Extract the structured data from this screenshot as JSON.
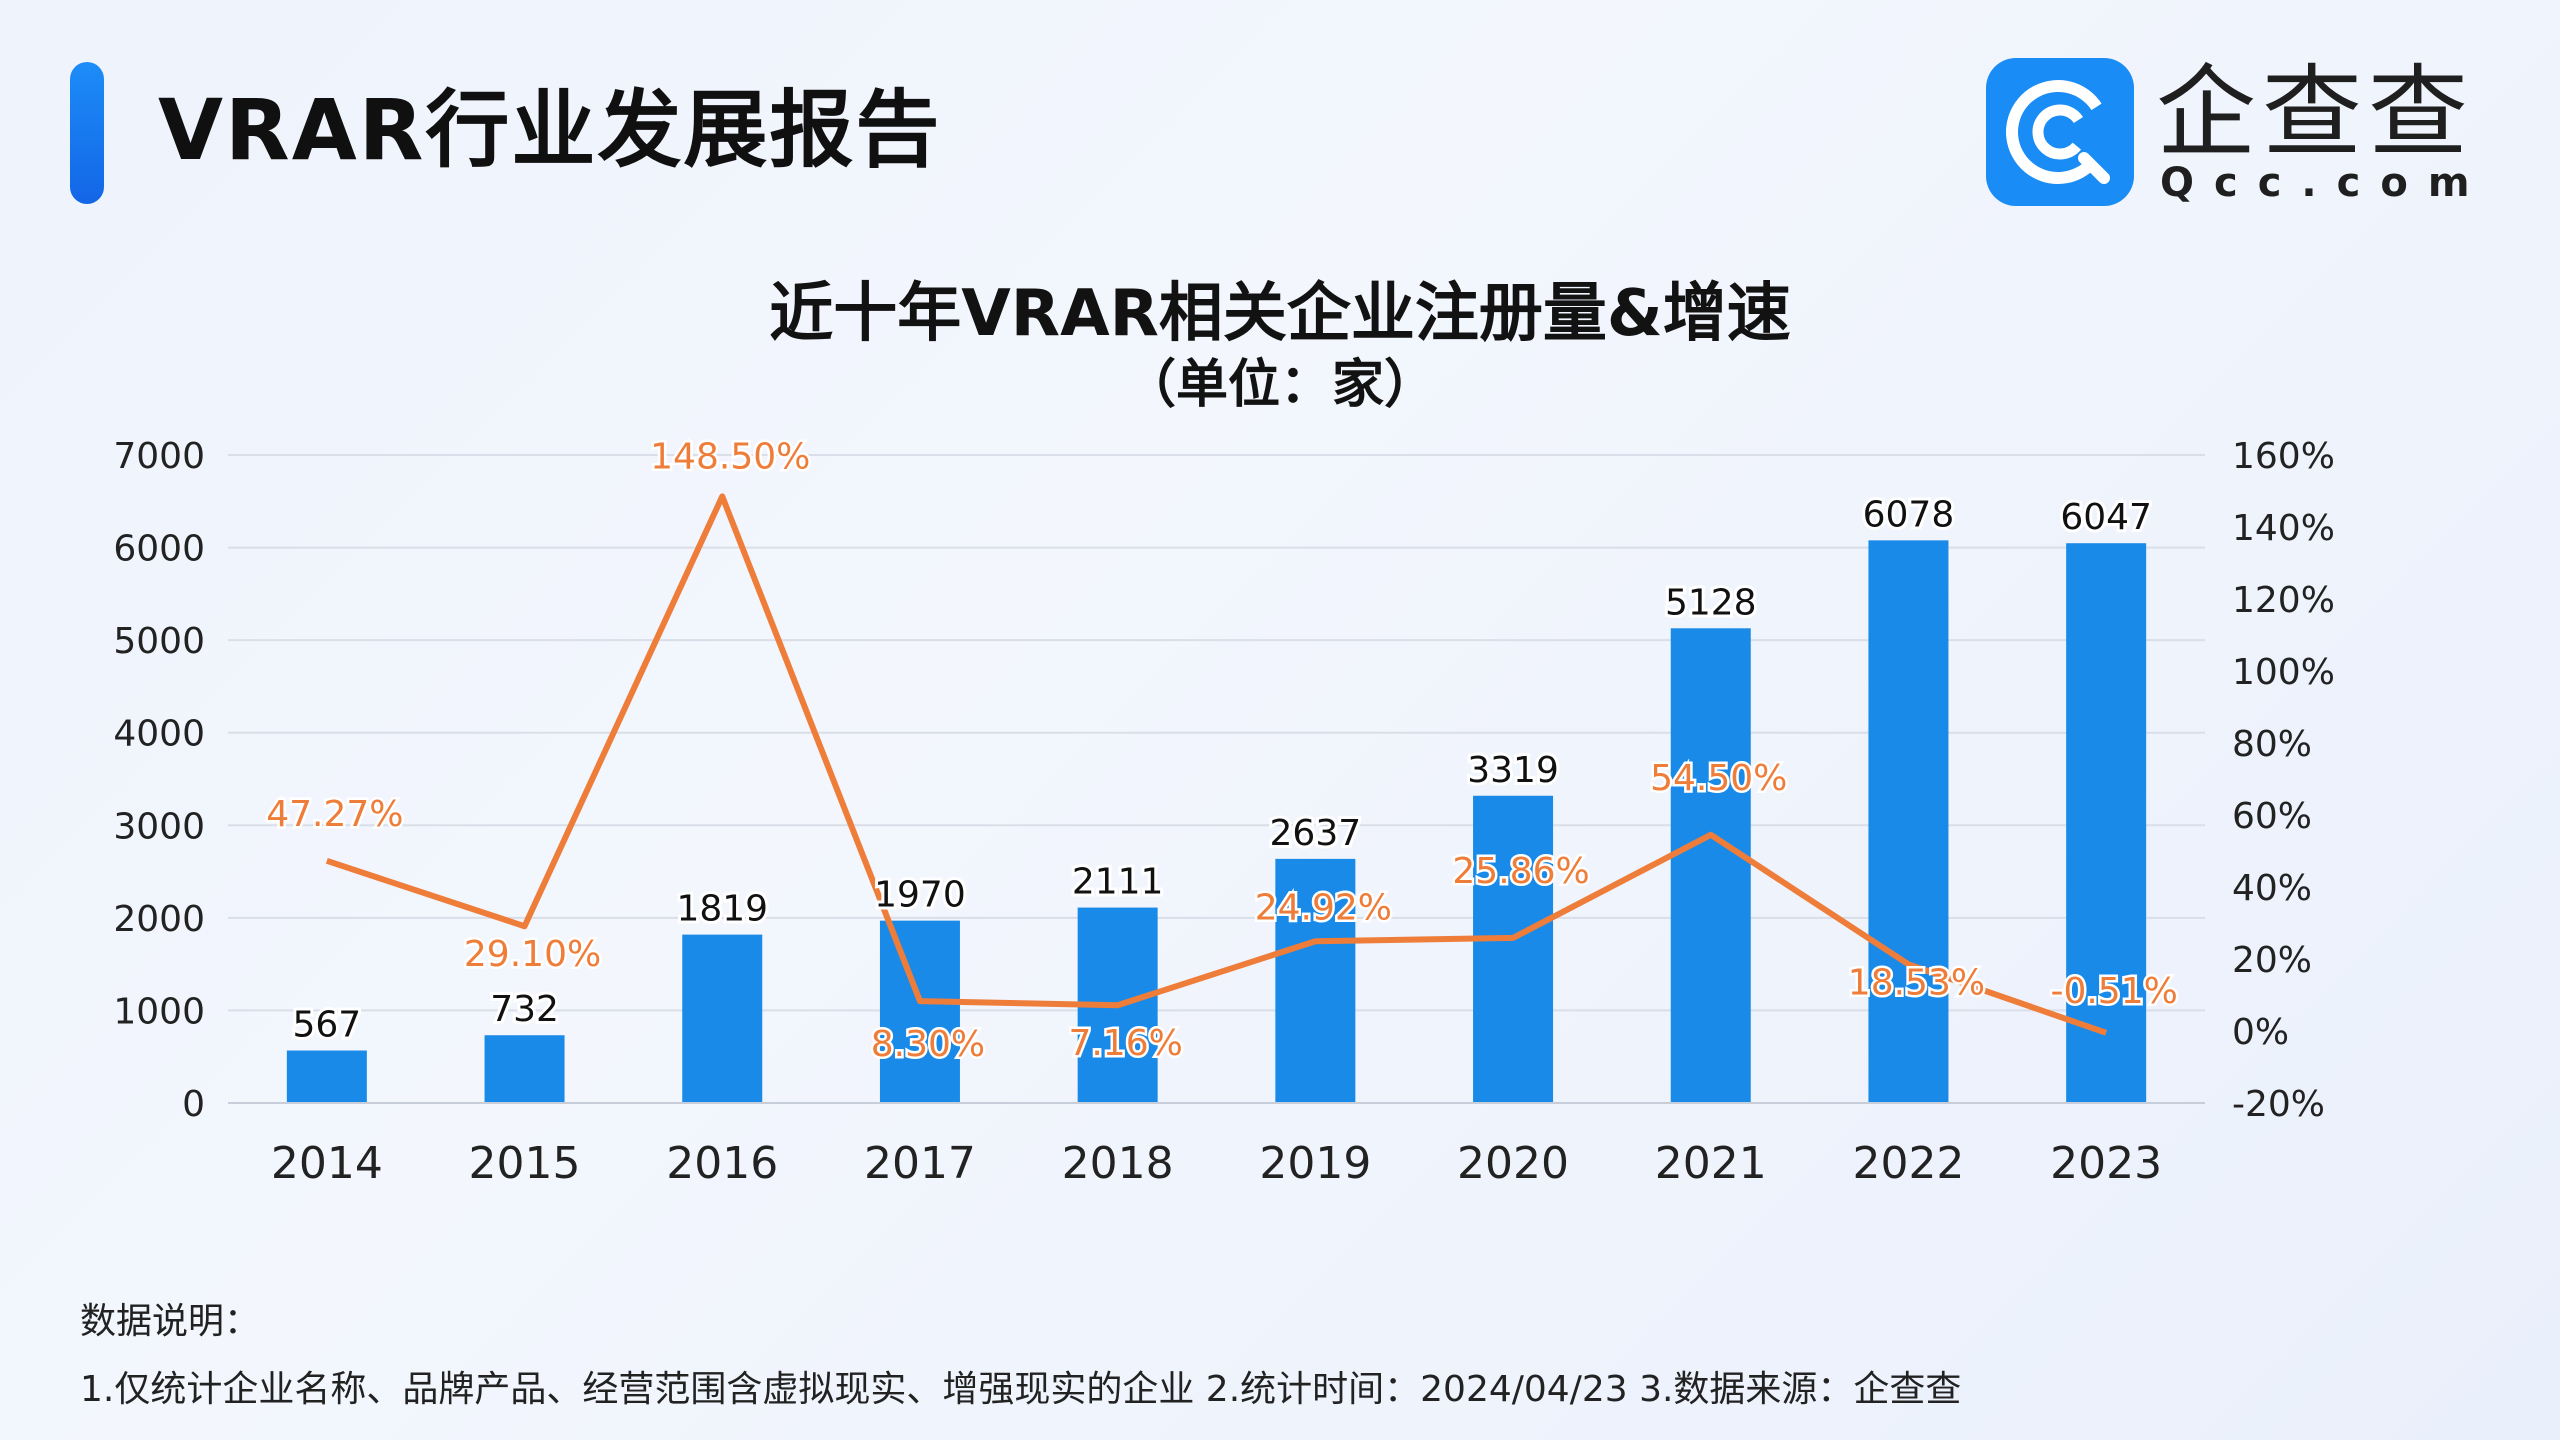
{
  "header": {
    "title": "VRAR行业发展报告",
    "logo_text": "企查查",
    "logo_sub": "Qcc.com",
    "colors": {
      "accent": "#1a8cf5"
    }
  },
  "chart_data": {
    "type": "bar",
    "title": "近十年VRAR相关企业注册量&增速",
    "subtitle": "（单位：家）",
    "categories": [
      "2014",
      "2015",
      "2016",
      "2017",
      "2018",
      "2019",
      "2020",
      "2021",
      "2022",
      "2023"
    ],
    "series": [
      {
        "type": "bar",
        "axis": "left",
        "values": [
          567,
          732,
          1819,
          1970,
          2111,
          2637,
          3319,
          5128,
          6078,
          6047
        ],
        "labels": [
          "567",
          "732",
          "1819",
          "1970",
          "2111",
          "2637",
          "3319",
          "5128",
          "6078",
          "6047"
        ],
        "color": "#1a8ae8"
      },
      {
        "type": "line",
        "axis": "right",
        "values": [
          47.27,
          29.1,
          148.5,
          8.3,
          7.16,
          24.92,
          25.86,
          54.5,
          18.53,
          -0.51
        ],
        "labels": [
          "47.27%",
          "29.10%",
          "148.50%",
          "8.30%",
          "7.16%",
          "24.92%",
          "25.86%",
          "54.50%",
          "18.53%",
          "-0.51%"
        ],
        "color": "#ef7d3a"
      }
    ],
    "ylim": [
      0,
      7000
    ],
    "y_ticks": [
      "0",
      "1000",
      "2000",
      "3000",
      "4000",
      "5000",
      "6000",
      "7000"
    ],
    "y2lim": [
      -20,
      160
    ],
    "y2_ticks": [
      "-20%",
      "0%",
      "20%",
      "40%",
      "60%",
      "80%",
      "100%",
      "120%",
      "140%",
      "160%"
    ],
    "grid": true
  },
  "notes": {
    "title": "数据说明：",
    "text": "1.仅统计企业名称、品牌产品、经营范围含虚拟现实、增强现实的企业   2.统计时间：2024/04/23    3.数据来源：企查查"
  }
}
